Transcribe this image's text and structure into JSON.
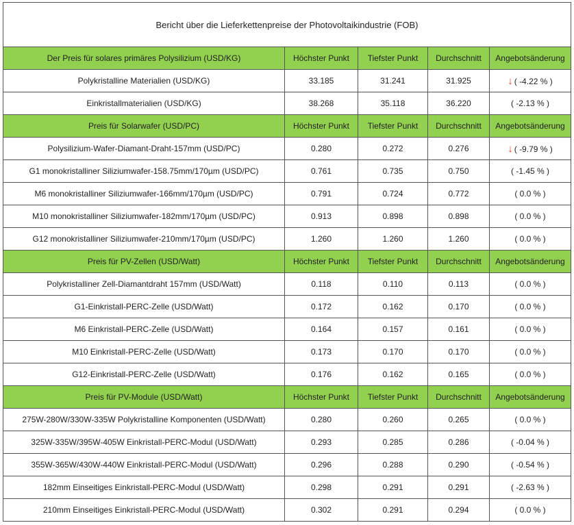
{
  "report": {
    "title": "Bericht über die Lieferkettenpreise der Photovoltaikindustrie (FOB)",
    "colors": {
      "section_bg": "#92d050",
      "down_arrow": "#e03a1e",
      "border": "#555555"
    },
    "columns": [
      "Höchster Punkt",
      "Tiefster Punkt",
      "Durchschnitt",
      "Angebotsänderung"
    ],
    "sections": [
      {
        "title": "Der Preis für solares primäres Polysilizium  (USD/KG)",
        "rows": [
          {
            "name": "Polykristalline Materialien  (USD/KG)",
            "high": "33.185",
            "low": "31.241",
            "avg": "31.925",
            "arrow": "↓",
            "change": "( -4.22 % )"
          },
          {
            "name": "Einkristallmaterialien  (USD/KG)",
            "high": "38.268",
            "low": "35.118",
            "avg": "36.220",
            "arrow": "",
            "change": "( -2.13 % )"
          }
        ]
      },
      {
        "title": "Preis für Solarwafer  (USD/PC)",
        "rows": [
          {
            "name": "Polysilizium-Wafer-Diamant-Draht-157mm  (USD/PC)",
            "high": "0.280",
            "low": "0.272",
            "avg": "0.276",
            "arrow": "↓",
            "change": "( -9.79 % )"
          },
          {
            "name": "G1 monokristalliner Siliziumwafer-158.75mm/170µm  (USD/PC)",
            "high": "0.761",
            "low": "0.735",
            "avg": "0.750",
            "arrow": "",
            "change": "( -1.45 % )"
          },
          {
            "name": "M6 monokristalliner Siliziumwafer-166mm/170µm  (USD/PC)",
            "high": "0.791",
            "low": "0.724",
            "avg": "0.772",
            "arrow": "",
            "change": "( 0.0 % )"
          },
          {
            "name": "M10 monokristalliner Siliziumwafer-182mm/170µm  (USD/PC)",
            "high": "0.913",
            "low": "0.898",
            "avg": "0.898",
            "arrow": "",
            "change": "( 0.0 % )"
          },
          {
            "name": "G12 monokristalliner Siliziumwafer-210mm/170µm  (USD/PC)",
            "high": "1.260",
            "low": "1.260",
            "avg": "1.260",
            "arrow": "",
            "change": "( 0.0 % )"
          }
        ]
      },
      {
        "title": "Preis für PV-Zellen  (USD/Watt)",
        "rows": [
          {
            "name": "Polykristalliner Zell-Diamantdraht 157mm  (USD/Watt)",
            "high": "0.118",
            "low": "0.110",
            "avg": "0.113",
            "arrow": "",
            "change": "( 0.0 % )"
          },
          {
            "name": "G1-Einkristall-PERC-Zelle  (USD/Watt)",
            "high": "0.172",
            "low": "0.162",
            "avg": "0.170",
            "arrow": "",
            "change": "( 0.0 % )"
          },
          {
            "name": "M6 Einkristall-PERC-Zelle  (USD/Watt)",
            "high": "0.164",
            "low": "0.157",
            "avg": "0.161",
            "arrow": "",
            "change": "( 0.0 % )"
          },
          {
            "name": "M10 Einkristall-PERC-Zelle  (USD/Watt)",
            "high": "0.173",
            "low": "0.170",
            "avg": "0.170",
            "arrow": "",
            "change": "( 0.0 % )"
          },
          {
            "name": "G12-Einkristall-PERC-Zelle  (USD/Watt)",
            "high": "0.176",
            "low": "0.162",
            "avg": "0.165",
            "arrow": "",
            "change": "( 0.0 % )"
          }
        ]
      },
      {
        "title": "Preis für PV-Module  (USD/Watt)",
        "rows": [
          {
            "name": "275W-280W/330W-335W Polykristalline Komponenten  (USD/Watt)",
            "high": "0.280",
            "low": "0.260",
            "avg": "0.265",
            "arrow": "",
            "change": "( 0.0 % )"
          },
          {
            "name": "325W-335W/395W-405W Einkristall-PERC-Modul  (USD/Watt)",
            "high": "0.293",
            "low": "0.285",
            "avg": "0.286",
            "arrow": "",
            "change": "( -0.04 % )"
          },
          {
            "name": "355W-365W/430W-440W Einkristall-PERC-Modul  (USD/Watt)",
            "high": "0.296",
            "low": "0.288",
            "avg": "0.290",
            "arrow": "",
            "change": "( -0.54 % )"
          },
          {
            "name": "182mm Einseitiges Einkristall-PERC-Modul  (USD/Watt)",
            "high": "0.298",
            "low": "0.291",
            "avg": "0.291",
            "arrow": "",
            "change": "( -2.63 % )"
          },
          {
            "name": "210mm Einseitiges Einkristall-PERC-Modul  (USD/Watt)",
            "high": "0.302",
            "low": "0.291",
            "avg": "0.294",
            "arrow": "",
            "change": "( 0.0 % )"
          }
        ]
      }
    ]
  }
}
